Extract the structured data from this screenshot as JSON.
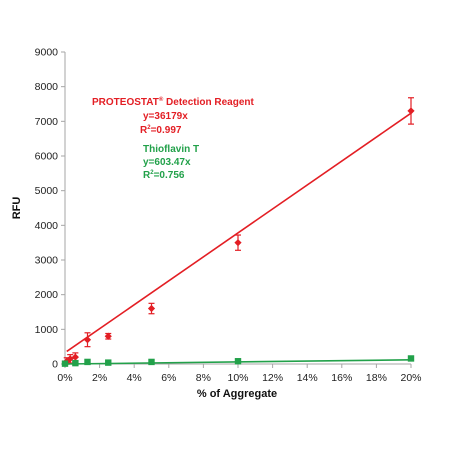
{
  "chart_data": {
    "type": "scatter",
    "xlabel": "% of Aggregate",
    "ylabel": "RFU",
    "xlim": [
      0,
      20
    ],
    "ylim": [
      0,
      9000
    ],
    "x_ticks": [
      0,
      2,
      4,
      6,
      8,
      10,
      12,
      14,
      16,
      18,
      20
    ],
    "x_tick_labels": [
      "0%",
      "2%",
      "4%",
      "6%",
      "8%",
      "10%",
      "12%",
      "14%",
      "16%",
      "18%",
      "20%"
    ],
    "y_ticks": [
      0,
      1000,
      2000,
      3000,
      4000,
      5000,
      6000,
      7000,
      8000,
      9000
    ],
    "y_tick_labels": [
      "0",
      "1000",
      "2000",
      "3000",
      "4000",
      "5000",
      "6000",
      "7000",
      "8000",
      "9000"
    ],
    "grid": false,
    "series": [
      {
        "name": "PROTEOSTAT® Detection Reagent",
        "color": "#e31e24",
        "marker": "diamond",
        "x": [
          0.1,
          0.3,
          0.6,
          1.3,
          2.5,
          5,
          10,
          20
        ],
        "y": [
          80,
          150,
          200,
          700,
          800,
          1600,
          3500,
          7300
        ],
        "err": [
          100,
          120,
          120,
          200,
          80,
          150,
          220,
          380
        ],
        "trend_slope": 361.79
      },
      {
        "name": "Thioflavin T",
        "color": "#22a14a",
        "marker": "square",
        "x": [
          0,
          0.6,
          1.3,
          2.5,
          5,
          10,
          20
        ],
        "y": [
          10,
          25,
          60,
          40,
          60,
          80,
          160
        ],
        "err": [
          0,
          0,
          0,
          0,
          0,
          0,
          0
        ],
        "trend_slope": 6.0347
      }
    ],
    "annotations": {
      "red_title": "PROTEOSTAT",
      "red_sup": "®",
      "red_title_rest": " Detection Reagent",
      "red_eq": "y=36179x",
      "red_r_prefix": "R",
      "red_r_sup": "2",
      "red_r_val": "=0.997",
      "green_title": "Thioflavin T",
      "green_eq": "y=603.47x",
      "green_r_prefix": "R",
      "green_r_sup": "2",
      "green_r_val": "=0.756"
    }
  }
}
